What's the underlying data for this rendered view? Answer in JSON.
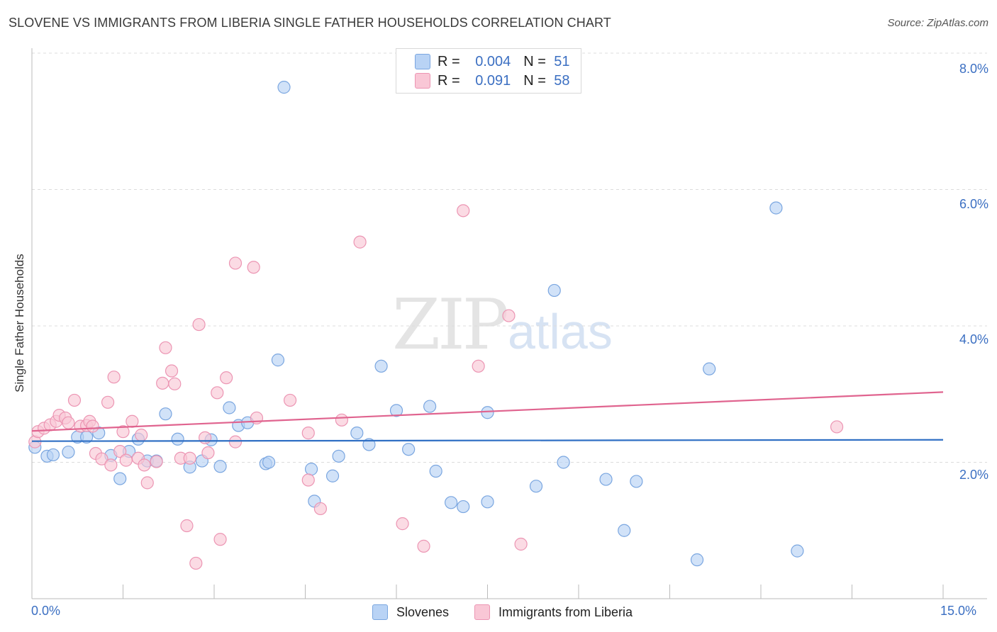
{
  "title": "SLOVENE VS IMMIGRANTS FROM LIBERIA SINGLE FATHER HOUSEHOLDS CORRELATION CHART",
  "source": "Source: ZipAtlas.com",
  "watermark": {
    "zip": "ZIP",
    "atlas": "atlas"
  },
  "legend": {
    "r_label": "R =",
    "n_label": "N =",
    "rows": [
      {
        "r": "0.004",
        "n": "51",
        "fill": "#b9d3f5",
        "stroke": "#7aa6e0"
      },
      {
        "r": "0.091",
        "n": "58",
        "fill": "#f9c7d6",
        "stroke": "#ec95b3"
      }
    ]
  },
  "bottom_legend": [
    {
      "label": "Slovenes",
      "fill": "#b9d3f5",
      "stroke": "#7aa6e0"
    },
    {
      "label": "Immigrants from Liberia",
      "fill": "#f9c7d6",
      "stroke": "#ec95b3"
    }
  ],
  "chart_data": {
    "type": "scatter",
    "title": "SLOVENE VS IMMIGRANTS FROM LIBERIA SINGLE FATHER HOUSEHOLDS CORRELATION CHART",
    "xlabel": "",
    "ylabel": "Single Father Households",
    "xlim": [
      0,
      15
    ],
    "ylim": [
      0,
      8
    ],
    "x_tick_labels": [
      "0.0%",
      "15.0%"
    ],
    "y_tick_labels": [
      "2.0%",
      "4.0%",
      "6.0%",
      "8.0%"
    ],
    "y_ticks": [
      2,
      4,
      6,
      8
    ],
    "grid": true,
    "legend_position": "top-center",
    "series": [
      {
        "name": "Slovenes",
        "color": "#7aa6e0",
        "fill": "#b9d3f5",
        "line_color": "#2f6fc4",
        "trend": [
          [
            0,
            2.31
          ],
          [
            15,
            2.33
          ]
        ],
        "points": [
          [
            0.05,
            2.22
          ],
          [
            0.25,
            2.09
          ],
          [
            0.35,
            2.11
          ],
          [
            0.6,
            2.15
          ],
          [
            0.75,
            2.37
          ],
          [
            0.9,
            2.37
          ],
          [
            1.1,
            2.43
          ],
          [
            1.3,
            2.1
          ],
          [
            1.45,
            1.76
          ],
          [
            1.6,
            2.16
          ],
          [
            1.75,
            2.34
          ],
          [
            1.9,
            2.02
          ],
          [
            2.05,
            2.02
          ],
          [
            2.2,
            2.71
          ],
          [
            2.4,
            2.34
          ],
          [
            2.6,
            1.93
          ],
          [
            2.8,
            2.02
          ],
          [
            2.95,
            2.33
          ],
          [
            3.1,
            1.94
          ],
          [
            3.25,
            2.8
          ],
          [
            3.4,
            2.54
          ],
          [
            3.55,
            2.58
          ],
          [
            3.85,
            1.98
          ],
          [
            3.9,
            2.0
          ],
          [
            4.05,
            3.5
          ],
          [
            4.15,
            7.5
          ],
          [
            4.6,
            1.9
          ],
          [
            4.65,
            1.43
          ],
          [
            4.95,
            1.8
          ],
          [
            5.05,
            2.09
          ],
          [
            5.35,
            2.43
          ],
          [
            5.55,
            2.26
          ],
          [
            5.75,
            3.41
          ],
          [
            6.0,
            2.76
          ],
          [
            6.2,
            2.19
          ],
          [
            6.55,
            2.82
          ],
          [
            6.65,
            1.87
          ],
          [
            6.9,
            1.41
          ],
          [
            7.1,
            1.35
          ],
          [
            7.5,
            2.73
          ],
          [
            7.5,
            1.42
          ],
          [
            8.3,
            1.65
          ],
          [
            8.6,
            4.52
          ],
          [
            8.75,
            2.0
          ],
          [
            9.45,
            1.75
          ],
          [
            9.75,
            1.0
          ],
          [
            9.95,
            1.72
          ],
          [
            10.95,
            0.57
          ],
          [
            11.15,
            3.37
          ],
          [
            12.25,
            5.73
          ],
          [
            12.6,
            0.7
          ]
        ]
      },
      {
        "name": "Immigrants from Liberia",
        "color": "#ec95b3",
        "fill": "#f9c7d6",
        "line_color": "#e0648f",
        "trend": [
          [
            0,
            2.46
          ],
          [
            15,
            3.03
          ]
        ],
        "points": [
          [
            0.05,
            2.3
          ],
          [
            0.1,
            2.45
          ],
          [
            0.2,
            2.5
          ],
          [
            0.3,
            2.55
          ],
          [
            0.4,
            2.6
          ],
          [
            0.45,
            2.69
          ],
          [
            0.55,
            2.65
          ],
          [
            0.6,
            2.58
          ],
          [
            0.7,
            2.91
          ],
          [
            0.8,
            2.53
          ],
          [
            0.9,
            2.54
          ],
          [
            0.95,
            2.6
          ],
          [
            1.0,
            2.53
          ],
          [
            1.05,
            2.13
          ],
          [
            1.15,
            2.05
          ],
          [
            1.25,
            2.88
          ],
          [
            1.3,
            1.96
          ],
          [
            1.35,
            3.25
          ],
          [
            1.45,
            2.16
          ],
          [
            1.5,
            2.45
          ],
          [
            1.55,
            2.03
          ],
          [
            1.65,
            2.6
          ],
          [
            1.75,
            2.06
          ],
          [
            1.8,
            2.4
          ],
          [
            1.85,
            1.96
          ],
          [
            1.9,
            1.7
          ],
          [
            2.05,
            2.01
          ],
          [
            2.15,
            3.16
          ],
          [
            2.2,
            3.68
          ],
          [
            2.3,
            3.34
          ],
          [
            2.35,
            3.15
          ],
          [
            2.45,
            2.06
          ],
          [
            2.55,
            1.07
          ],
          [
            2.6,
            2.06
          ],
          [
            2.7,
            0.52
          ],
          [
            2.75,
            4.02
          ],
          [
            2.85,
            2.36
          ],
          [
            2.9,
            2.14
          ],
          [
            3.05,
            3.02
          ],
          [
            3.1,
            0.87
          ],
          [
            3.2,
            3.24
          ],
          [
            3.35,
            2.3
          ],
          [
            3.35,
            4.92
          ],
          [
            3.65,
            4.86
          ],
          [
            3.7,
            2.65
          ],
          [
            4.25,
            2.91
          ],
          [
            4.55,
            1.74
          ],
          [
            4.55,
            2.43
          ],
          [
            4.75,
            1.32
          ],
          [
            5.1,
            2.62
          ],
          [
            5.4,
            5.23
          ],
          [
            6.1,
            1.1
          ],
          [
            6.45,
            0.77
          ],
          [
            7.1,
            5.69
          ],
          [
            7.35,
            3.41
          ],
          [
            7.85,
            4.15
          ],
          [
            8.05,
            0.8
          ],
          [
            13.25,
            2.52
          ]
        ]
      }
    ]
  }
}
